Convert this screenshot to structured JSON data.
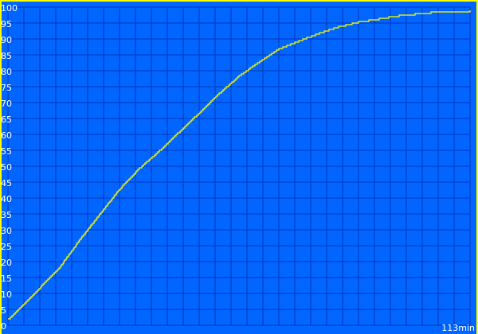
{
  "chart_data": {
    "type": "line",
    "title": "",
    "xlabel": "",
    "ylabel": "",
    "x_unit_label": "113min",
    "xlim": [
      0,
      113
    ],
    "ylim": [
      0,
      100
    ],
    "y_ticks": [
      "0",
      "5",
      "10",
      "15",
      "20",
      "25",
      "30",
      "35",
      "40",
      "45",
      "50",
      "55",
      "60",
      "65",
      "70",
      "75",
      "80",
      "85",
      "90",
      "95",
      "100"
    ],
    "grid": true,
    "series": [
      {
        "x": [
          0,
          3.9,
          7.8,
          12.7,
          17.5,
          22.4,
          27.3,
          32.1,
          37,
          41.9,
          46.8,
          51.6,
          56.5,
          61.4,
          66.2,
          71.1,
          76,
          80.8,
          85.7,
          90.6,
          95.5,
          103.3,
          112,
          113
        ],
        "y": [
          2,
          7,
          12,
          18.5,
          27,
          35,
          43,
          49.5,
          55,
          61,
          67,
          73,
          78.5,
          83,
          87,
          89.5,
          92,
          94,
          95.5,
          96.5,
          97.5,
          98.5,
          98.5,
          99
        ]
      }
    ],
    "colors": {
      "background": "#0066ff",
      "grid": "#0033bb",
      "line": "#ffff00",
      "border": "#ffff00",
      "text": "#ffffff"
    }
  }
}
